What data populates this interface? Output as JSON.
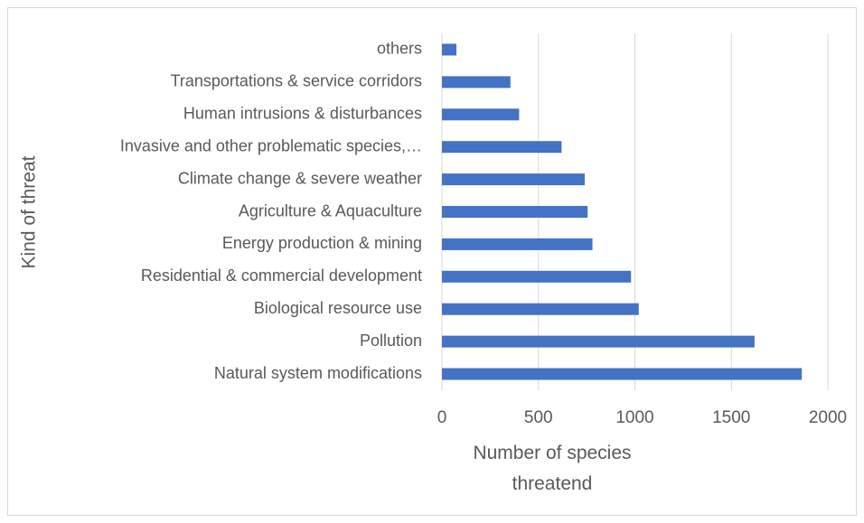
{
  "chart_data": {
    "type": "barh",
    "xlabel": "Number of species threatend",
    "ylabel": "Kind of threat",
    "categories": [
      "Natural system modifications",
      "Pollution",
      "Biological resource use",
      "Residential & commercial development",
      "Energy production & mining",
      "Agriculture & Aquaculture",
      "Climate change & severe weather",
      "Invasive and other problematic species,…",
      "Human intrusions & disturbances",
      "Transportations & service corridors",
      "others"
    ],
    "values": [
      1865,
      1620,
      1020,
      980,
      780,
      755,
      740,
      620,
      400,
      355,
      75
    ],
    "color": "#4472c4",
    "xlim": [
      0,
      2000
    ],
    "xticks": [
      0,
      500,
      1000,
      1500,
      2000
    ],
    "grid": true
  }
}
